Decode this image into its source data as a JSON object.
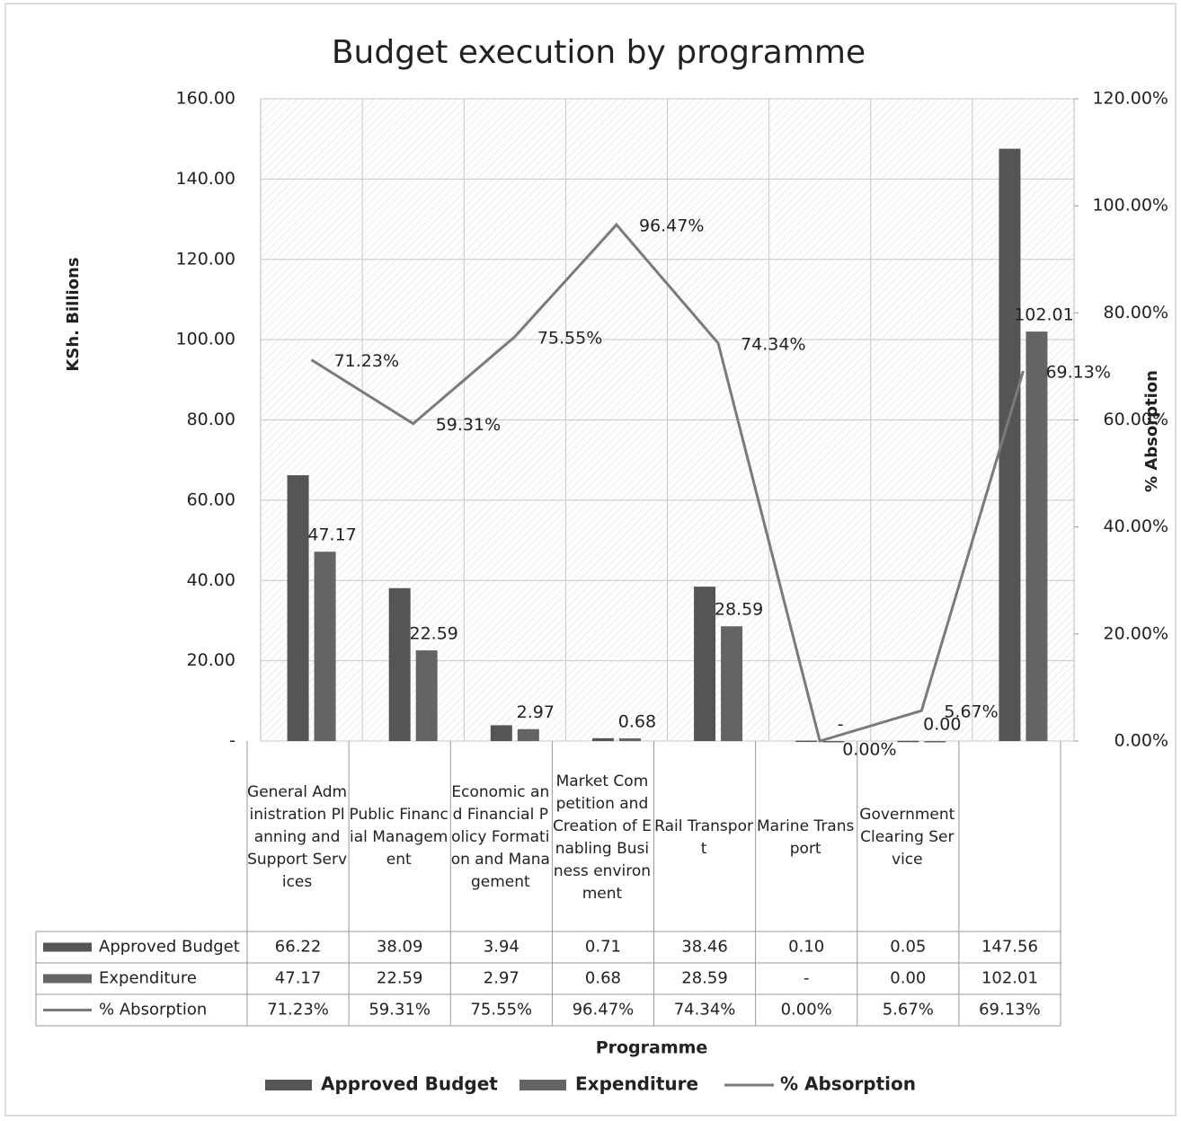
{
  "chart_data": {
    "type": "bar_line",
    "title": "Budget execution by programme",
    "ylabel": "KSh. Billions",
    "y2label": "% Absorption",
    "xlabel": "Programme",
    "categories": [
      "General Administration Planning and Support Services",
      "Public Financial Management",
      "Economic and Financial Policy Formation and Management",
      "Market Competition and Creation of Enabling Business environment",
      "Rail Transport",
      "Marine Transport",
      "Government Clearing Service",
      null
    ],
    "series": [
      {
        "name": "Approved Budget",
        "color": "#555555",
        "values": [
          66.22,
          38.09,
          3.94,
          0.71,
          38.46,
          0.1,
          0.05,
          147.56
        ],
        "value_labels": [
          "66.22",
          "38.09",
          "3.94",
          "0.71",
          "38.46",
          "0.10",
          "0.05",
          "147.56"
        ]
      },
      {
        "name": "Expenditure",
        "color": "#646464",
        "values": [
          47.17,
          22.59,
          2.97,
          0.68,
          28.59,
          0,
          0,
          102.01
        ],
        "value_labels": [
          "47.17",
          "22.59",
          "2.97",
          "0.68",
          "28.59",
          "-",
          "0.00",
          "102.01"
        ]
      },
      {
        "name": "% Absorption",
        "color": "#7a7a7a",
        "axis": "y2",
        "values": [
          71.23,
          59.31,
          75.55,
          96.47,
          74.34,
          0,
          5.67,
          69.13
        ],
        "value_labels": [
          "71.23%",
          "59.31%",
          "75.55%",
          "96.47%",
          "74.34%",
          "0.00%",
          "5.67%",
          "69.13%"
        ]
      }
    ],
    "ylim": [
      0,
      160
    ],
    "yticks": [
      {
        "value": 0,
        "label": "-"
      },
      {
        "value": 20,
        "label": "20.00"
      },
      {
        "value": 40,
        "label": "40.00"
      },
      {
        "value": 60,
        "label": "60.00"
      },
      {
        "value": 80,
        "label": "80.00"
      },
      {
        "value": 100,
        "label": "100.00"
      },
      {
        "value": 120,
        "label": "120.00"
      },
      {
        "value": 140,
        "label": "140.00"
      },
      {
        "value": 160,
        "label": "160.00"
      }
    ],
    "y2lim": [
      0,
      120
    ],
    "y2ticks": [
      {
        "value": 0,
        "label": "0.00%"
      },
      {
        "value": 20,
        "label": "20.00%"
      },
      {
        "value": 40,
        "label": "40.00%"
      },
      {
        "value": 60,
        "label": "60.00%"
      },
      {
        "value": 80,
        "label": "80.00%"
      },
      {
        "value": 100,
        "label": "100.00%"
      },
      {
        "value": 120,
        "label": "120.00%"
      }
    ],
    "grid": true,
    "legend": "bottom",
    "data_table": true
  }
}
